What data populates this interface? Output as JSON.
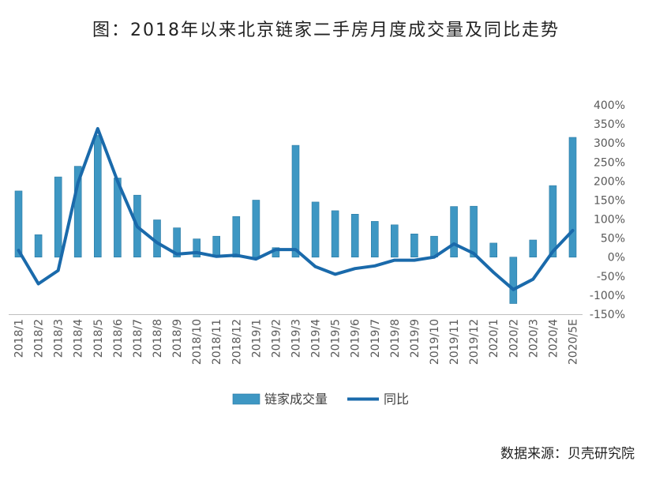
{
  "title": "图：2018年以来北京链家二手房月度成交量及同比走势",
  "source": "数据来源：贝壳研究院",
  "colors": {
    "bar": "#3e97c3",
    "bar_edge": "#2b7aa3",
    "line": "#1a6aab",
    "axis_text": "#595959",
    "grid": "#bfbfbf"
  },
  "chart_data": {
    "type": "bar",
    "title": "图：2018年以来北京链家二手房月度成交量及同比走势",
    "categories": [
      "2018/1",
      "2018/2",
      "2018/3",
      "2018/4",
      "2018/5",
      "2018/6",
      "2018/7",
      "2018/8",
      "2018/9",
      "2018/10",
      "2018/11",
      "2018/12",
      "2019/1",
      "2019/2",
      "2019/3",
      "2019/4",
      "2019/5",
      "2019/6",
      "2019/7",
      "2019/8",
      "2019/9",
      "2019/10",
      "2019/11",
      "2019/12",
      "2020/1",
      "2020/2",
      "2020/3",
      "2020/4",
      "2020/5E"
    ],
    "series": [
      {
        "name": "链家成交量",
        "type": "bar",
        "axis": "left-unlabeled",
        "values": [
          174,
          59,
          211,
          239,
          320,
          208,
          163,
          98,
          77,
          48,
          55,
          107,
          150,
          25,
          294,
          145,
          122,
          113,
          94,
          85,
          61,
          55,
          133,
          134,
          37,
          -122,
          45,
          188,
          315
        ]
      },
      {
        "name": "同比",
        "type": "line",
        "axis": "right",
        "values": [
          18,
          -70,
          -35,
          195,
          338,
          200,
          80,
          38,
          8,
          12,
          2,
          5,
          -5,
          20,
          20,
          -25,
          -45,
          -30,
          -23,
          -8,
          -8,
          0,
          35,
          10,
          -40,
          -85,
          -58,
          15,
          70
        ]
      }
    ],
    "y_right": {
      "ylim": [
        -150,
        400
      ],
      "ticks": [
        "400%",
        "350%",
        "300%",
        "250%",
        "200%",
        "150%",
        "100%",
        "50%",
        "0%",
        "-50%",
        "-100%",
        "-150%"
      ]
    },
    "legend": {
      "position": "bottom",
      "entries": [
        "链家成交量",
        "同比"
      ]
    },
    "grid": false
  }
}
